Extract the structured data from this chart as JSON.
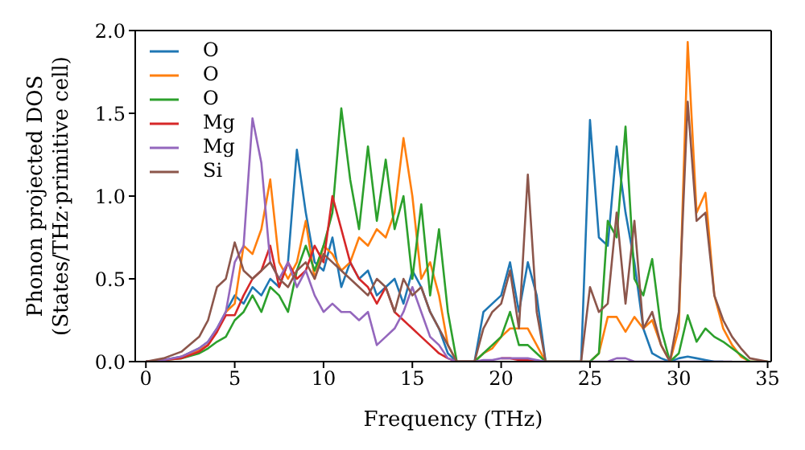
{
  "chart_data": {
    "type": "line",
    "xlabel": "Frequency (THz)",
    "ylabel": "Phonon projected DOS\n(States/THz·primitive cell)",
    "x": [
      0,
      1,
      2,
      3,
      3.5,
      4,
      4.5,
      5,
      5.5,
      6,
      6.5,
      7,
      7.5,
      8,
      8.5,
      9,
      9.5,
      10,
      10.5,
      11,
      11.5,
      12,
      12.5,
      13,
      13.5,
      14,
      14.5,
      15,
      15.5,
      16,
      16.5,
      17,
      17.5,
      18,
      18.5,
      19,
      19.5,
      20,
      20.5,
      21,
      21.5,
      22,
      22.5,
      24.5,
      25,
      25.5,
      26,
      26.5,
      27,
      27.5,
      28,
      28.5,
      29,
      29.5,
      30,
      30.5,
      31,
      31.5,
      32,
      32.5,
      33,
      33.5,
      34,
      35
    ],
    "series": [
      {
        "name": "O",
        "color": "#1f77b4",
        "values": [
          0,
          0.01,
          0.03,
          0.08,
          0.12,
          0.2,
          0.3,
          0.4,
          0.35,
          0.45,
          0.4,
          0.5,
          0.45,
          0.6,
          1.28,
          0.9,
          0.6,
          0.55,
          0.75,
          0.45,
          0.6,
          0.5,
          0.55,
          0.4,
          0.45,
          0.5,
          0.35,
          0.55,
          0.45,
          0.3,
          0.2,
          0.05,
          0,
          0,
          0,
          0.3,
          0.35,
          0.4,
          0.6,
          0.3,
          0.6,
          0.4,
          0,
          0,
          1.46,
          0.75,
          0.7,
          1.3,
          0.9,
          0.6,
          0.2,
          0.05,
          0.02,
          0,
          0.02,
          0.03,
          0.02,
          0.01,
          0,
          0,
          null,
          null,
          null,
          null
        ]
      },
      {
        "name": "O",
        "color": "#ff7f0e",
        "values": [
          null,
          null,
          0.03,
          0.07,
          0.1,
          0.18,
          0.3,
          0.35,
          0.7,
          0.65,
          0.8,
          1.1,
          0.6,
          0.5,
          0.6,
          0.85,
          0.5,
          0.7,
          0.65,
          0.55,
          0.6,
          0.75,
          0.7,
          0.8,
          0.75,
          0.9,
          1.35,
          1.0,
          0.5,
          0.6,
          0.4,
          0.1,
          0,
          0,
          0,
          0.05,
          0.08,
          0.15,
          0.2,
          0.2,
          0.2,
          0.1,
          0,
          0,
          0,
          0.05,
          0.27,
          0.27,
          0.18,
          0.27,
          0.2,
          0.25,
          0.1,
          0,
          0.2,
          1.93,
          0.9,
          1.02,
          0.4,
          0.2,
          0.1,
          0.03,
          0,
          0
        ]
      },
      {
        "name": "O",
        "color": "#2ca02c",
        "values": [
          0,
          0.01,
          0.02,
          0.05,
          0.08,
          0.12,
          0.15,
          0.25,
          0.3,
          0.4,
          0.3,
          0.45,
          0.4,
          0.3,
          0.55,
          0.7,
          0.55,
          0.7,
          0.9,
          1.53,
          1.1,
          0.8,
          1.3,
          0.85,
          1.22,
          0.8,
          1.0,
          0.5,
          0.95,
          0.4,
          0.8,
          0.3,
          0,
          0,
          0,
          0.05,
          0.1,
          0.15,
          0.3,
          0.1,
          0.1,
          0.05,
          0,
          0,
          0,
          0.05,
          0.85,
          0.75,
          1.42,
          0.5,
          0.4,
          0.62,
          0.2,
          0,
          0.05,
          0.28,
          0.12,
          0.2,
          0.15,
          0.12,
          0.08,
          0.04,
          0,
          0
        ]
      },
      {
        "name": "Mg",
        "color": "#d62728",
        "values": [
          0,
          0.01,
          0.02,
          0.06,
          0.1,
          0.18,
          0.28,
          0.28,
          0.4,
          0.5,
          0.55,
          0.7,
          0.45,
          0.6,
          0.5,
          0.55,
          0.7,
          0.6,
          1.0,
          0.8,
          0.6,
          0.5,
          0.45,
          0.35,
          0.45,
          0.3,
          0.25,
          0.2,
          0.15,
          0.1,
          0.05,
          0.02,
          0,
          0,
          0,
          null,
          null,
          0.02,
          0.02,
          0.01,
          0.01,
          0,
          0,
          null,
          null,
          null,
          null,
          null,
          null,
          null,
          null,
          null,
          null,
          null,
          null,
          null,
          null,
          null,
          null,
          null,
          null,
          null,
          null,
          null
        ]
      },
      {
        "name": "Mg",
        "color": "#9467bd",
        "values": [
          0,
          0.01,
          0.03,
          0.08,
          0.12,
          0.2,
          0.3,
          0.6,
          0.7,
          1.47,
          1.2,
          0.6,
          0.5,
          0.6,
          0.45,
          0.55,
          0.4,
          0.3,
          0.35,
          0.3,
          0.3,
          0.25,
          0.3,
          0.1,
          0.15,
          0.2,
          0.3,
          0.45,
          0.3,
          0.15,
          0.1,
          0.02,
          0,
          0,
          0,
          0.01,
          0.01,
          0.02,
          0.02,
          0.02,
          0.02,
          0.01,
          0,
          0,
          0,
          0,
          0,
          0.02,
          0.02,
          0,
          0,
          0,
          0,
          0,
          0,
          0,
          0,
          0,
          0,
          0,
          0,
          null,
          null,
          null
        ]
      },
      {
        "name": "Si",
        "color": "#8c564b",
        "values": [
          0,
          0.02,
          0.06,
          0.15,
          0.25,
          0.45,
          0.5,
          0.72,
          0.55,
          0.5,
          0.55,
          0.6,
          0.5,
          0.45,
          0.55,
          0.6,
          0.5,
          0.65,
          0.6,
          0.55,
          0.5,
          0.45,
          0.4,
          0.5,
          0.45,
          0.3,
          0.5,
          0.4,
          0.45,
          0.3,
          0.2,
          0.1,
          0,
          0,
          0,
          0.2,
          0.3,
          0.35,
          0.55,
          0.2,
          1.13,
          0.3,
          0,
          0,
          0.45,
          0.3,
          0.35,
          0.9,
          0.35,
          0.85,
          0.2,
          0.3,
          0.1,
          0,
          0.3,
          1.57,
          0.85,
          0.9,
          0.4,
          0.25,
          0.15,
          0.08,
          0.02,
          0
        ]
      }
    ],
    "xlim": [
      -0.6,
      35.2
    ],
    "xticks": [
      0,
      5,
      10,
      15,
      20,
      25,
      30,
      35
    ],
    "ylim": [
      0,
      2.0
    ],
    "yticks": [
      {
        "value": 0,
        "label": "0.0"
      },
      {
        "value": 0.5,
        "label": "0.5"
      },
      {
        "value": 1,
        "label": "1.0"
      },
      {
        "value": 1.5,
        "label": "1.5"
      },
      {
        "value": 2,
        "label": "2.0"
      }
    ],
    "legend": "top left",
    "grid": false,
    "marker": "none",
    "line_style": "solid"
  }
}
